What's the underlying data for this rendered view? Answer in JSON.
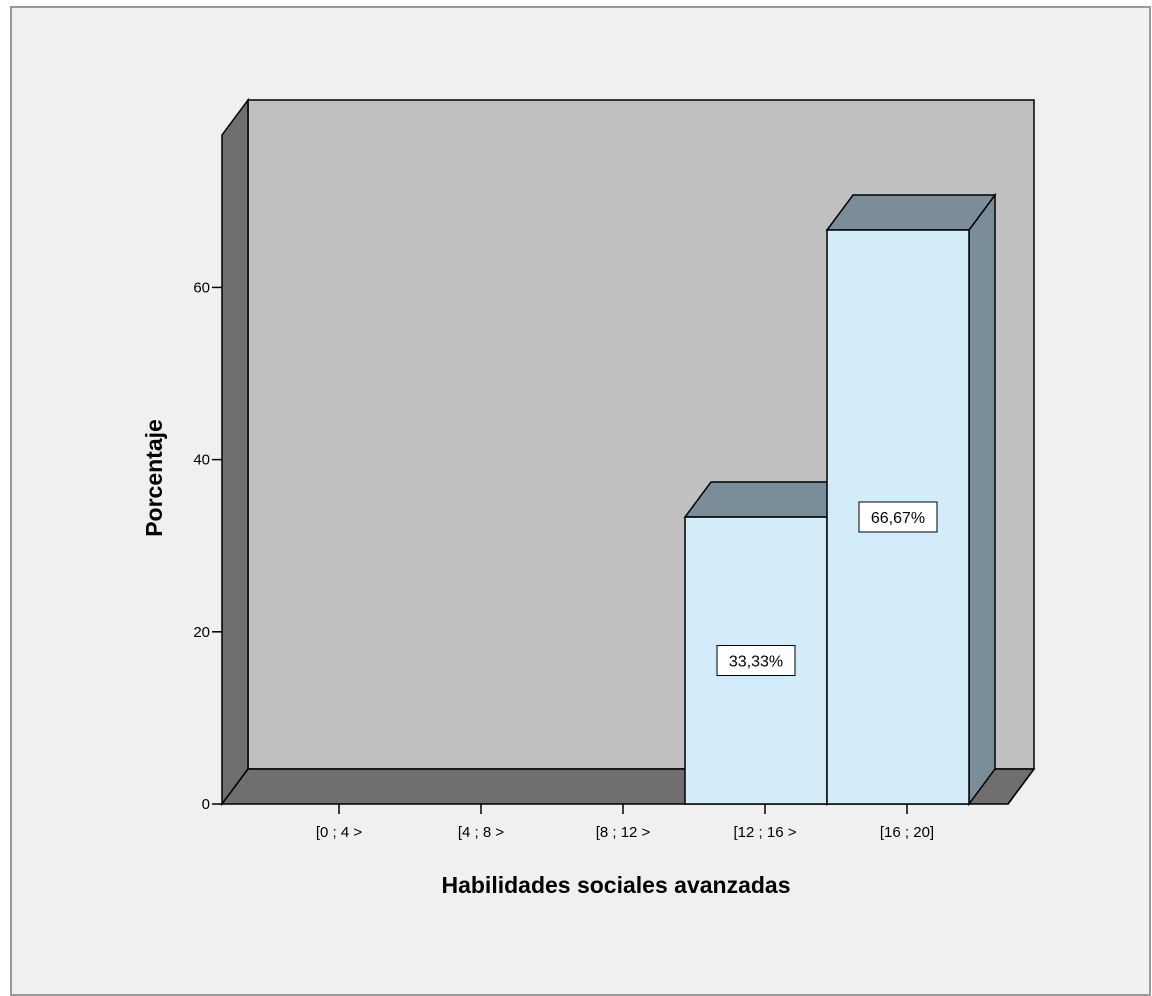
{
  "chart_data": {
    "type": "bar",
    "title": "",
    "xlabel": "Habilidades sociales avanzadas",
    "ylabel": "Porcentaje",
    "categories": [
      "[0 ; 4 >",
      "[4 ; 8 >",
      "[8 ; 12 >",
      "[12 ; 16 >",
      "[16 ; 20]"
    ],
    "values": [
      0,
      0,
      0,
      33.33,
      66.67
    ],
    "data_labels": [
      "",
      "",
      "",
      "33,33%",
      "66,67%"
    ],
    "ylim": [
      0,
      80
    ],
    "yticks": [
      0,
      20,
      40,
      60
    ],
    "grid": false,
    "legend": "none",
    "style": "3d",
    "colors": {
      "bar_front": "#d2ecf9",
      "bar_top": "#7b8d99",
      "bar_side": "#7b8d99",
      "back_wall": "#c0c0c0",
      "side_wall": "#6f6f6f",
      "floor": "#6f6f6f",
      "background": "#f0f0f0",
      "frame_border": "#9a9a9a"
    }
  }
}
